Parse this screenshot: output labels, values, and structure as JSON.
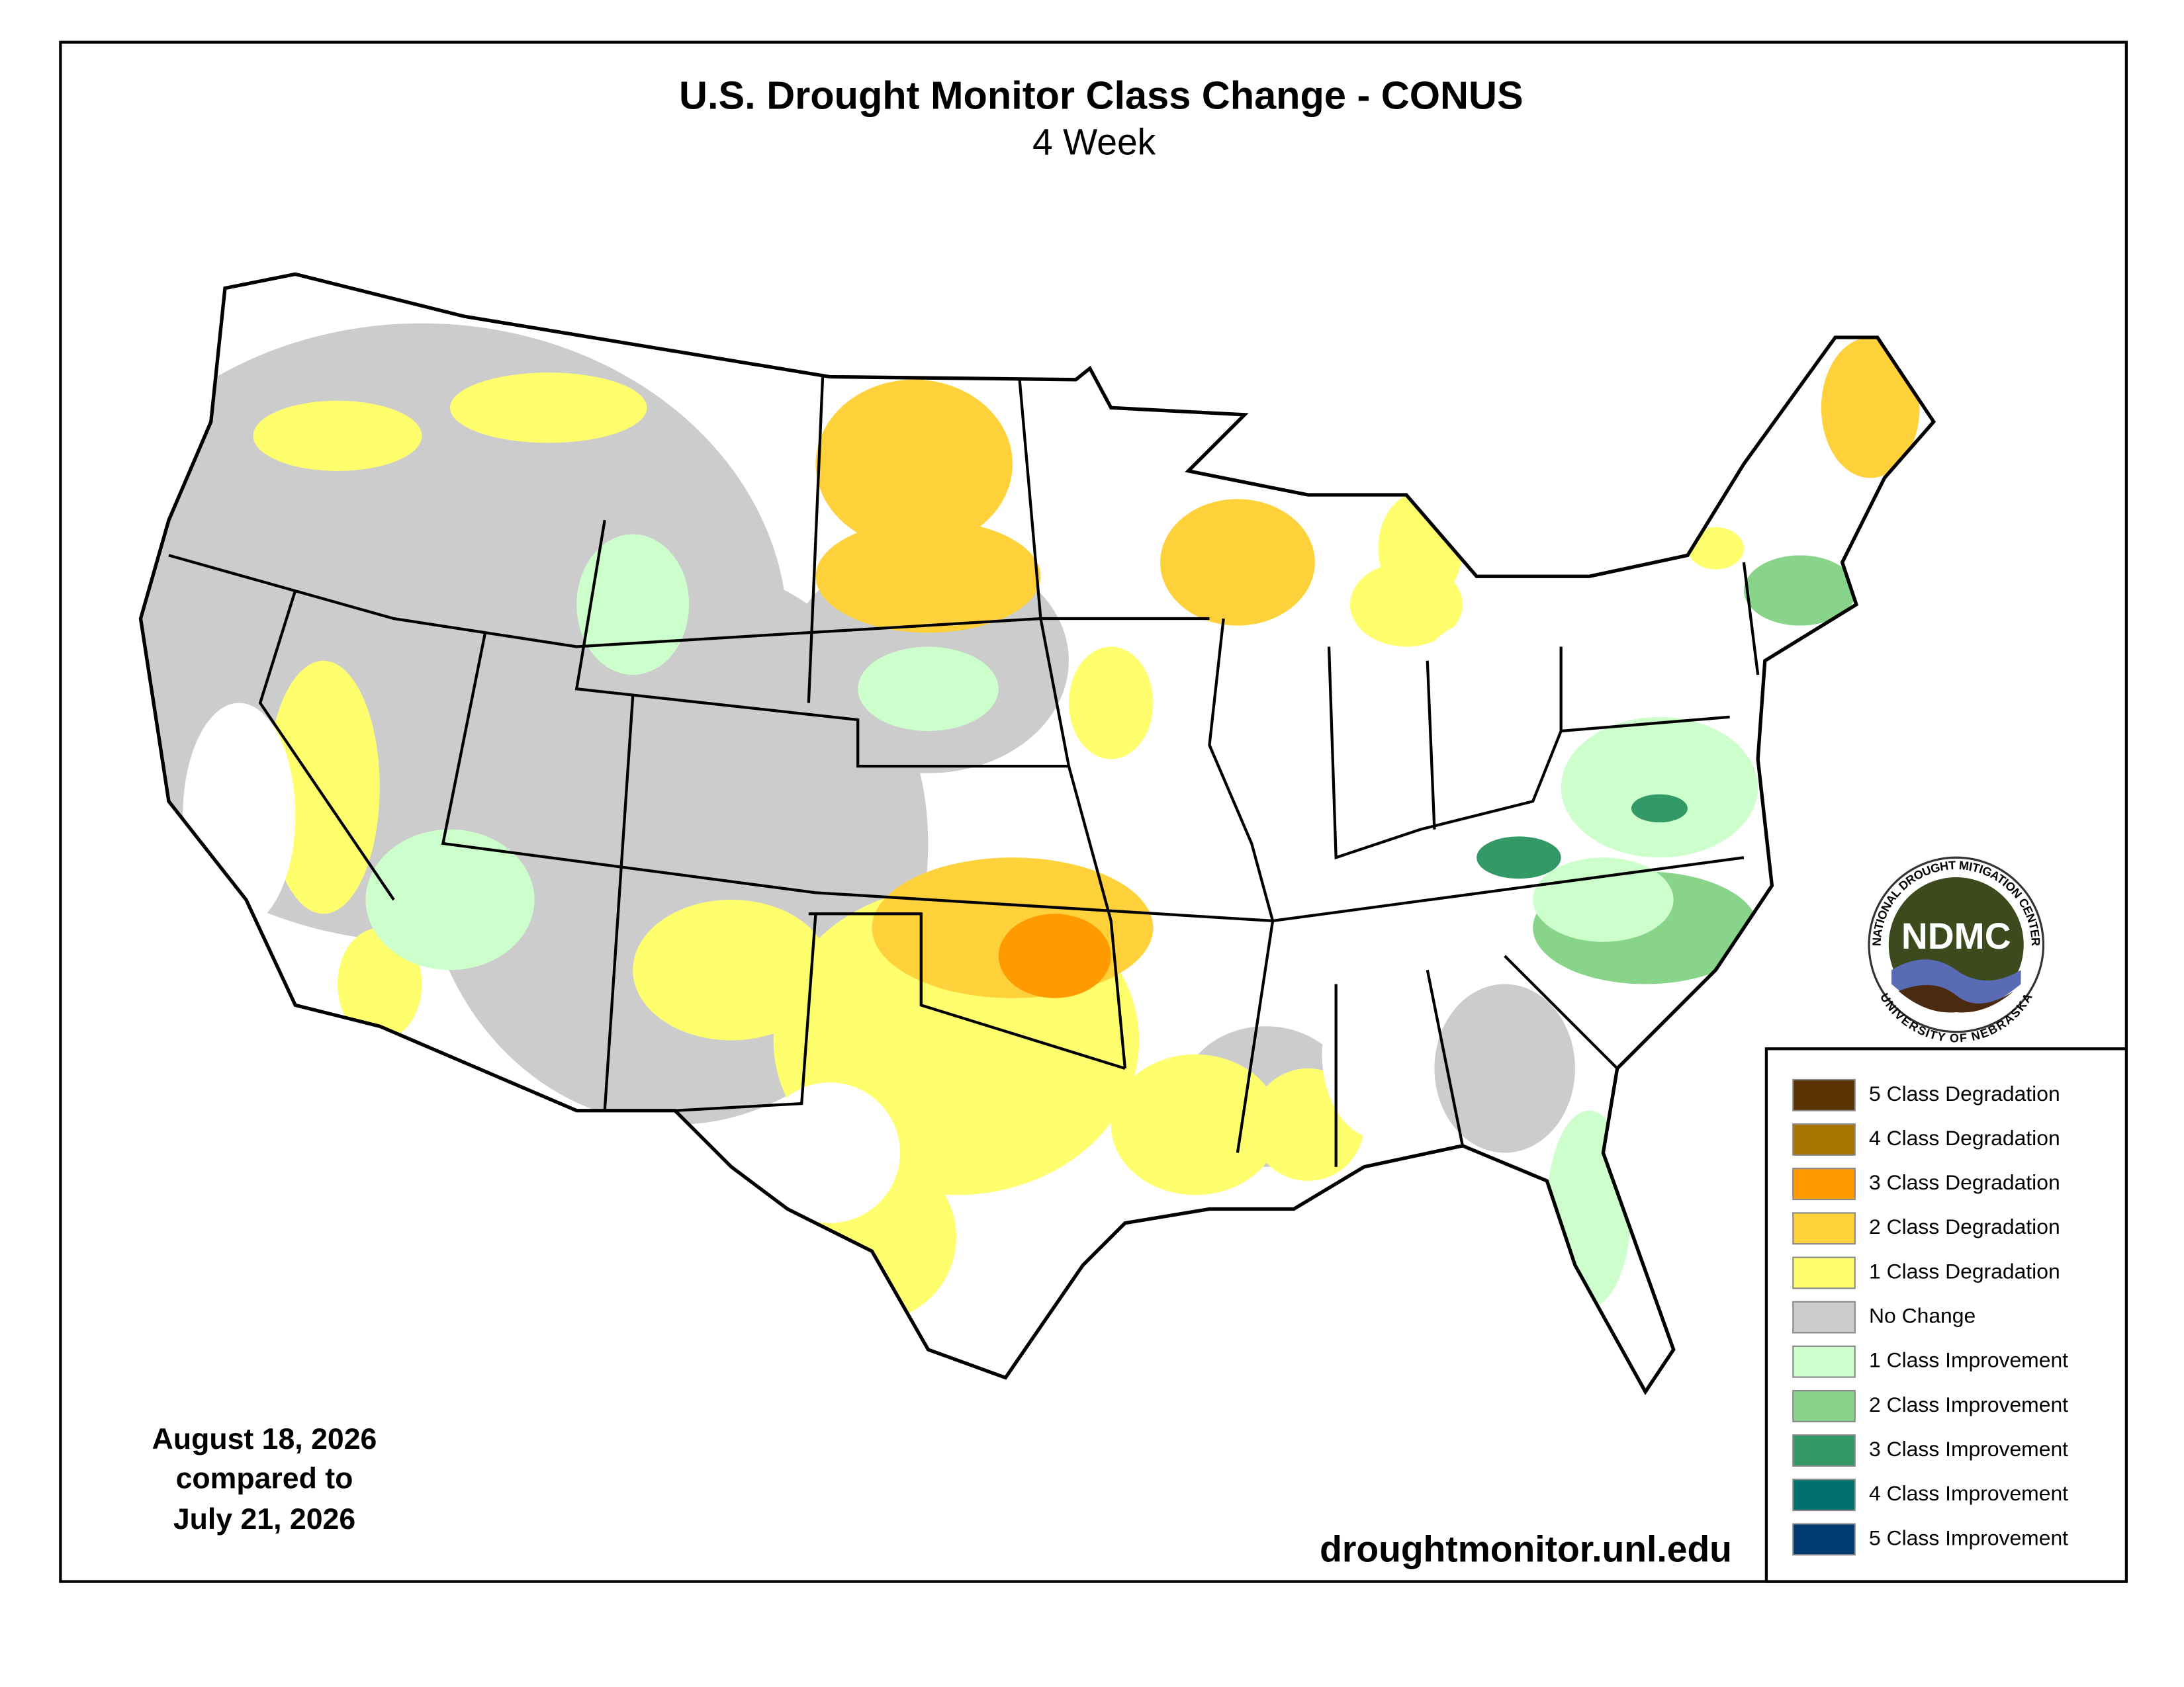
{
  "header": {
    "title": "U.S. Drought Monitor Class Change - CONUS",
    "subtitle": "4 Week"
  },
  "dates": [
    "August 18, 2026",
    "compared to",
    "July 21, 2026"
  ],
  "url": "droughtmonitor.unl.edu",
  "logo": {
    "name": "NDMC",
    "top_text": "NATIONAL DROUGHT MITIGATION CENTER",
    "bottom_text": "UNIVERSITY OF NEBRASKA"
  },
  "legend": {
    "items": [
      {
        "label": "5 Class Degradation",
        "color": "#5a3100"
      },
      {
        "label": "4 Class Degradation",
        "color": "#a87400"
      },
      {
        "label": "3 Class Degradation",
        "color": "#ff9a00"
      },
      {
        "label": "2 Class Degradation",
        "color": "#ffd23c"
      },
      {
        "label": "1 Class Degradation",
        "color": "#ffff6e"
      },
      {
        "label": "No Change",
        "color": "#cccccc"
      },
      {
        "label": "1 Class Improvement",
        "color": "#ccffcc"
      },
      {
        "label": "2 Class Improvement",
        "color": "#88d48a"
      },
      {
        "label": "3 Class Improvement",
        "color": "#339966"
      },
      {
        "label": "4 Class Improvement",
        "color": "#00706e"
      },
      {
        "label": "5 Class Improvement",
        "color": "#003a70"
      }
    ]
  }
}
